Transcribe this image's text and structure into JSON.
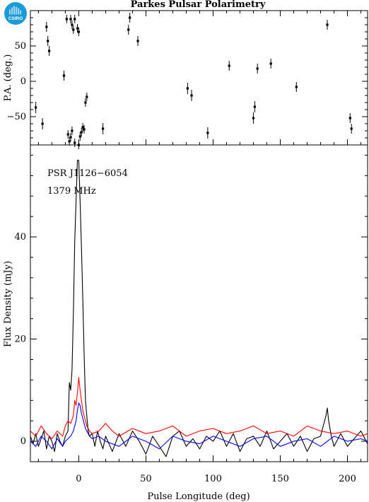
{
  "header": {
    "title": "Parkes Pulsar Polarimetry",
    "logo_text": "CSIRO"
  },
  "colors": {
    "total_intensity": "#000000",
    "linear": "#ff0000",
    "circular": "#0000ff",
    "logo": "#1a9bd7"
  },
  "chart_data": [
    {
      "type": "scatter",
      "ylabel": "P.A. (deg.)",
      "xlim": [
        -36,
        215
      ],
      "ylim": [
        -90,
        100
      ],
      "yticks": [
        -50,
        0,
        50
      ],
      "xticks_minor_step": 10,
      "points": [
        {
          "x": -32,
          "y": -37,
          "err": 8
        },
        {
          "x": -27,
          "y": -60,
          "err": 8
        },
        {
          "x": -24,
          "y": 77,
          "err": 7
        },
        {
          "x": -23,
          "y": 57,
          "err": 7
        },
        {
          "x": -22,
          "y": 43,
          "err": 7
        },
        {
          "x": -11,
          "y": 8,
          "err": 7
        },
        {
          "x": -9,
          "y": 88,
          "err": 6
        },
        {
          "x": -6,
          "y": 88,
          "err": 6
        },
        {
          "x": -5,
          "y": 80,
          "err": 6
        },
        {
          "x": -4,
          "y": 73,
          "err": 6
        },
        {
          "x": -3,
          "y": 88,
          "err": 6
        },
        {
          "x": -1,
          "y": 75,
          "err": 6
        },
        {
          "x": 0,
          "y": 70,
          "err": 6
        },
        {
          "x": -8,
          "y": -75,
          "err": 6
        },
        {
          "x": -7,
          "y": -85,
          "err": 6
        },
        {
          "x": -6,
          "y": -79,
          "err": 6
        },
        {
          "x": -5,
          "y": -70,
          "err": 6
        },
        {
          "x": -3,
          "y": -87,
          "err": 6
        },
        {
          "x": 0,
          "y": -90,
          "err": 6
        },
        {
          "x": 1,
          "y": -78,
          "err": 6
        },
        {
          "x": 2,
          "y": -72,
          "err": 6
        },
        {
          "x": 3,
          "y": -65,
          "err": 6
        },
        {
          "x": 4,
          "y": -68,
          "err": 6
        },
        {
          "x": 5,
          "y": -30,
          "err": 6
        },
        {
          "x": 6,
          "y": -22,
          "err": 6
        },
        {
          "x": 18,
          "y": -67,
          "err": 8
        },
        {
          "x": 37,
          "y": 73,
          "err": 7
        },
        {
          "x": 38,
          "y": 90,
          "err": 7
        },
        {
          "x": 44,
          "y": 57,
          "err": 7
        },
        {
          "x": 81,
          "y": -10,
          "err": 8
        },
        {
          "x": 84,
          "y": -20,
          "err": 8
        },
        {
          "x": 96,
          "y": -73,
          "err": 8
        },
        {
          "x": 112,
          "y": 22,
          "err": 7
        },
        {
          "x": 130,
          "y": -52,
          "err": 8
        },
        {
          "x": 131,
          "y": -36,
          "err": 8
        },
        {
          "x": 133,
          "y": 18,
          "err": 7
        },
        {
          "x": 143,
          "y": 25,
          "err": 7
        },
        {
          "x": 162,
          "y": -8,
          "err": 7
        },
        {
          "x": 185,
          "y": 80,
          "err": 7
        },
        {
          "x": 202,
          "y": -52,
          "err": 7
        },
        {
          "x": 203,
          "y": -67,
          "err": 7
        }
      ]
    },
    {
      "type": "line",
      "xlabel": "Pulse Longitude (deg)",
      "ylabel": "Flux Density (mJy)",
      "xlim": [
        -36,
        215
      ],
      "ylim": [
        -4,
        58
      ],
      "xticks": [
        0,
        50,
        100,
        150,
        200
      ],
      "yticks": [
        0,
        20,
        40
      ],
      "annotations": [
        "PSR J1126−6054",
        "1379 MHz"
      ],
      "series": [
        {
          "key": "total",
          "x": [
            -36,
            -34,
            -32,
            -30,
            -28,
            -26,
            -24,
            -22,
            -20,
            -18,
            -16,
            -14,
            -12,
            -10,
            -8,
            -7,
            -6,
            -5,
            -4,
            -3,
            -2,
            -1,
            0,
            1,
            2,
            3,
            4,
            5,
            6,
            7,
            8,
            10,
            12,
            14,
            16,
            18,
            20,
            25,
            30,
            35,
            40,
            45,
            50,
            55,
            60,
            65,
            70,
            75,
            80,
            85,
            90,
            95,
            100,
            105,
            110,
            115,
            120,
            125,
            130,
            135,
            140,
            145,
            150,
            155,
            160,
            165,
            170,
            175,
            180,
            182,
            184,
            185,
            186,
            188,
            190,
            195,
            200,
            205,
            210,
            215
          ],
          "y": [
            1,
            -0.5,
            1.5,
            -1,
            0.5,
            2,
            -1.5,
            1,
            0,
            -2,
            1.5,
            0,
            -1,
            1,
            2,
            11.5,
            10,
            14,
            25,
            39,
            47,
            55,
            55,
            47,
            38,
            28,
            17,
            8,
            5,
            2,
            1,
            1.5,
            -1,
            2,
            0,
            -1.5,
            1,
            -2,
            1.5,
            -1,
            2,
            0,
            -2.5,
            1,
            -1,
            -3,
            1,
            2,
            -1,
            0.5,
            -1.5,
            1,
            0,
            2,
            -1,
            1.5,
            -2,
            0.5,
            1,
            -1,
            2,
            -1.5,
            0,
            1.5,
            -1,
            1,
            -2,
            0.5,
            1,
            3,
            5,
            6.5,
            4,
            1,
            -1,
            1.5,
            -1,
            0.5,
            2,
            -0.5
          ]
        },
        {
          "key": "linear",
          "x": [
            -36,
            -32,
            -28,
            -24,
            -20,
            -16,
            -12,
            -10,
            -8,
            -6,
            -4,
            -3,
            -2,
            -1,
            0,
            1,
            2,
            3,
            4,
            5,
            6,
            7,
            8,
            10,
            15,
            20,
            25,
            30,
            40,
            50,
            60,
            70,
            80,
            90,
            100,
            110,
            120,
            130,
            140,
            150,
            160,
            170,
            180,
            190,
            200,
            210,
            215
          ],
          "y": [
            2,
            1,
            3,
            1.5,
            0.5,
            2,
            1,
            3,
            4,
            3.5,
            5,
            8,
            7,
            9.5,
            12.5,
            10,
            8,
            6,
            5,
            4,
            3,
            2.5,
            2,
            1.5,
            2,
            3.5,
            2,
            1,
            2.5,
            1.5,
            2,
            3,
            1,
            2,
            2.5,
            1.5,
            2,
            3,
            1.5,
            2,
            1,
            3,
            2,
            1.5,
            2,
            1,
            1.5
          ]
        },
        {
          "key": "circular",
          "x": [
            -36,
            -32,
            -28,
            -24,
            -20,
            -16,
            -12,
            -10,
            -8,
            -6,
            -4,
            -2,
            -1,
            0,
            1,
            2,
            3,
            4,
            5,
            6,
            7,
            8,
            10,
            15,
            20,
            30,
            40,
            50,
            60,
            70,
            80,
            90,
            100,
            110,
            120,
            130,
            140,
            150,
            160,
            170,
            180,
            190,
            200,
            210,
            215
          ],
          "y": [
            0,
            -1,
            1,
            0,
            -1.5,
            0.5,
            -1,
            0,
            0.5,
            1,
            2,
            4,
            6,
            7.5,
            7,
            5.5,
            4.5,
            3.5,
            2.5,
            2,
            1.5,
            1,
            0.5,
            1,
            0,
            -1,
            1,
            0,
            -1.5,
            1,
            0,
            -0.5,
            1,
            0,
            -1,
            0.5,
            1,
            -1,
            0,
            0.5,
            -1,
            1,
            0,
            0.5,
            0
          ]
        }
      ]
    }
  ]
}
